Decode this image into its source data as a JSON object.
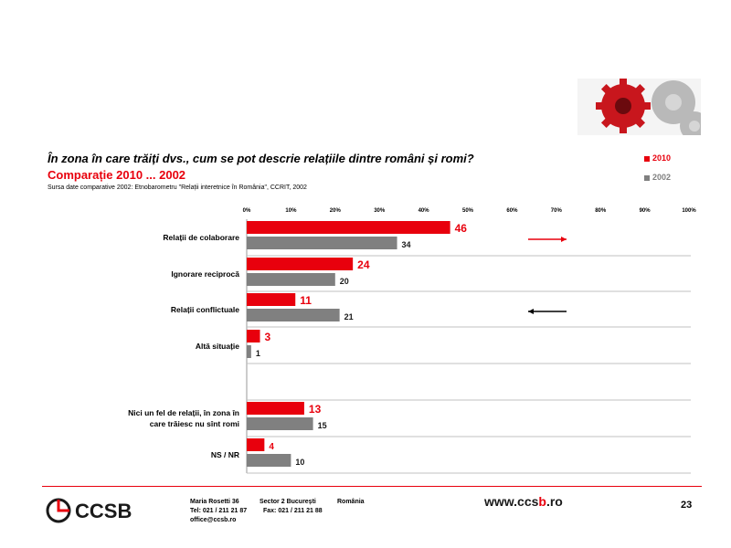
{
  "slide": {
    "question": "În zona în care trăiți dvs., cum se pot descrie relațiile dintre români și romi?",
    "subtitle": "Comparație 2010 ... 2002",
    "source_note": "Sursa date comparative 2002: Etnobarometru \"Relații interetnice în România\", CCRIT, 2002",
    "page_number": "23",
    "website_prefix": "www.ccs",
    "website_b": "b",
    "website_suffix": ".ro",
    "footer": {
      "line1": [
        "Maria Rosetti 36",
        "Sector 2  București",
        "România"
      ],
      "line2": [
        "Tel: 021 / 211 21 87",
        "Fax: 021 / 211 21 88"
      ],
      "line3": "office@ccsb.ro"
    },
    "logo_text": "CCSB",
    "colors": {
      "accent": "#e8000d",
      "series2010": "#e8000d",
      "series2002": "#808080"
    }
  },
  "chart_data": {
    "type": "bar",
    "orientation": "horizontal",
    "categories": [
      "Relații de colaborare",
      "Ignorare reciprocă",
      "Relații conflictuale",
      "Altă situație",
      "Nici un fel de relații, în zona în care trăiesc nu sînt romi",
      "NS / NR"
    ],
    "category_lines": [
      [
        "Relații de colaborare"
      ],
      [
        "Ignorare reciprocă"
      ],
      [
        "Relații conflictuale"
      ],
      [
        "Altă situație"
      ],
      [
        "Nici un fel de relații, în zona în",
        "care trăiesc nu sînt romi"
      ],
      [
        "NS / NR"
      ]
    ],
    "series": [
      {
        "name": "2010",
        "values": [
          46,
          24,
          11,
          3,
          13,
          4
        ],
        "color": "#e8000d"
      },
      {
        "name": "2002",
        "values": [
          34,
          20,
          21,
          1,
          15,
          10
        ],
        "color": "#808080"
      }
    ],
    "xlim": [
      0,
      100
    ],
    "ticks": [
      "0%",
      "10%",
      "20%",
      "30%",
      "40%",
      "50%",
      "60%",
      "70%",
      "80%",
      "90%",
      "100%"
    ],
    "legend": "top-right",
    "trend_arrows": [
      {
        "category": "Relații de colaborare",
        "direction": "right",
        "color": "#e8000d"
      },
      {
        "category": "Relații conflictuale",
        "direction": "left",
        "color": "#000000"
      }
    ]
  }
}
